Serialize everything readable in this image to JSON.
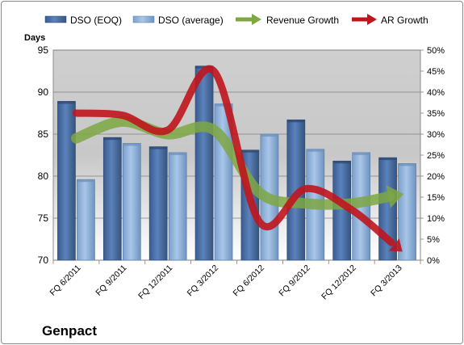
{
  "company": "Genpact",
  "colors": {
    "dso_eoq": "#4a6fa5",
    "dso_avg": "#9bbce0",
    "revenue_growth": "#7ea743",
    "ar_growth": "#c0151d"
  },
  "chart_data": {
    "type": "bar",
    "title": "",
    "categories": [
      "FQ 6/2011",
      "FQ 9/2011",
      "FQ 12/2011",
      "FQ 3/2012",
      "FQ 6/2012",
      "FQ 9/2012",
      "FQ 12/2012",
      "FQ 3/2013"
    ],
    "ylabel": "Days",
    "ylim": [
      70,
      95
    ],
    "yticks": [
      70,
      75,
      80,
      85,
      90,
      95
    ],
    "y2lim": [
      0,
      50
    ],
    "y2ticks": [
      "0%",
      "5%",
      "10%",
      "15%",
      "20%",
      "25%",
      "30%",
      "35%",
      "40%",
      "45%",
      "50%"
    ],
    "legend_position": "top",
    "grid": true,
    "series": [
      {
        "name": "DSO (EOQ)",
        "type": "bar",
        "axis": "left",
        "values": [
          88.9,
          84.6,
          83.5,
          93.1,
          83.1,
          86.7,
          81.8,
          82.2
        ]
      },
      {
        "name": "DSO (average)",
        "type": "bar",
        "axis": "left",
        "values": [
          79.6,
          83.9,
          82.8,
          88.6,
          85.0,
          83.2,
          82.8,
          81.5
        ]
      },
      {
        "name": "Revenue Growth",
        "type": "line-arrow",
        "axis": "right",
        "values": [
          29,
          33,
          30,
          31,
          16,
          13.5,
          13.5,
          15.5
        ]
      },
      {
        "name": "AR Growth",
        "type": "line-arrow",
        "axis": "right",
        "values": [
          35,
          34.5,
          31,
          45,
          9,
          17,
          12,
          3
        ]
      }
    ]
  }
}
